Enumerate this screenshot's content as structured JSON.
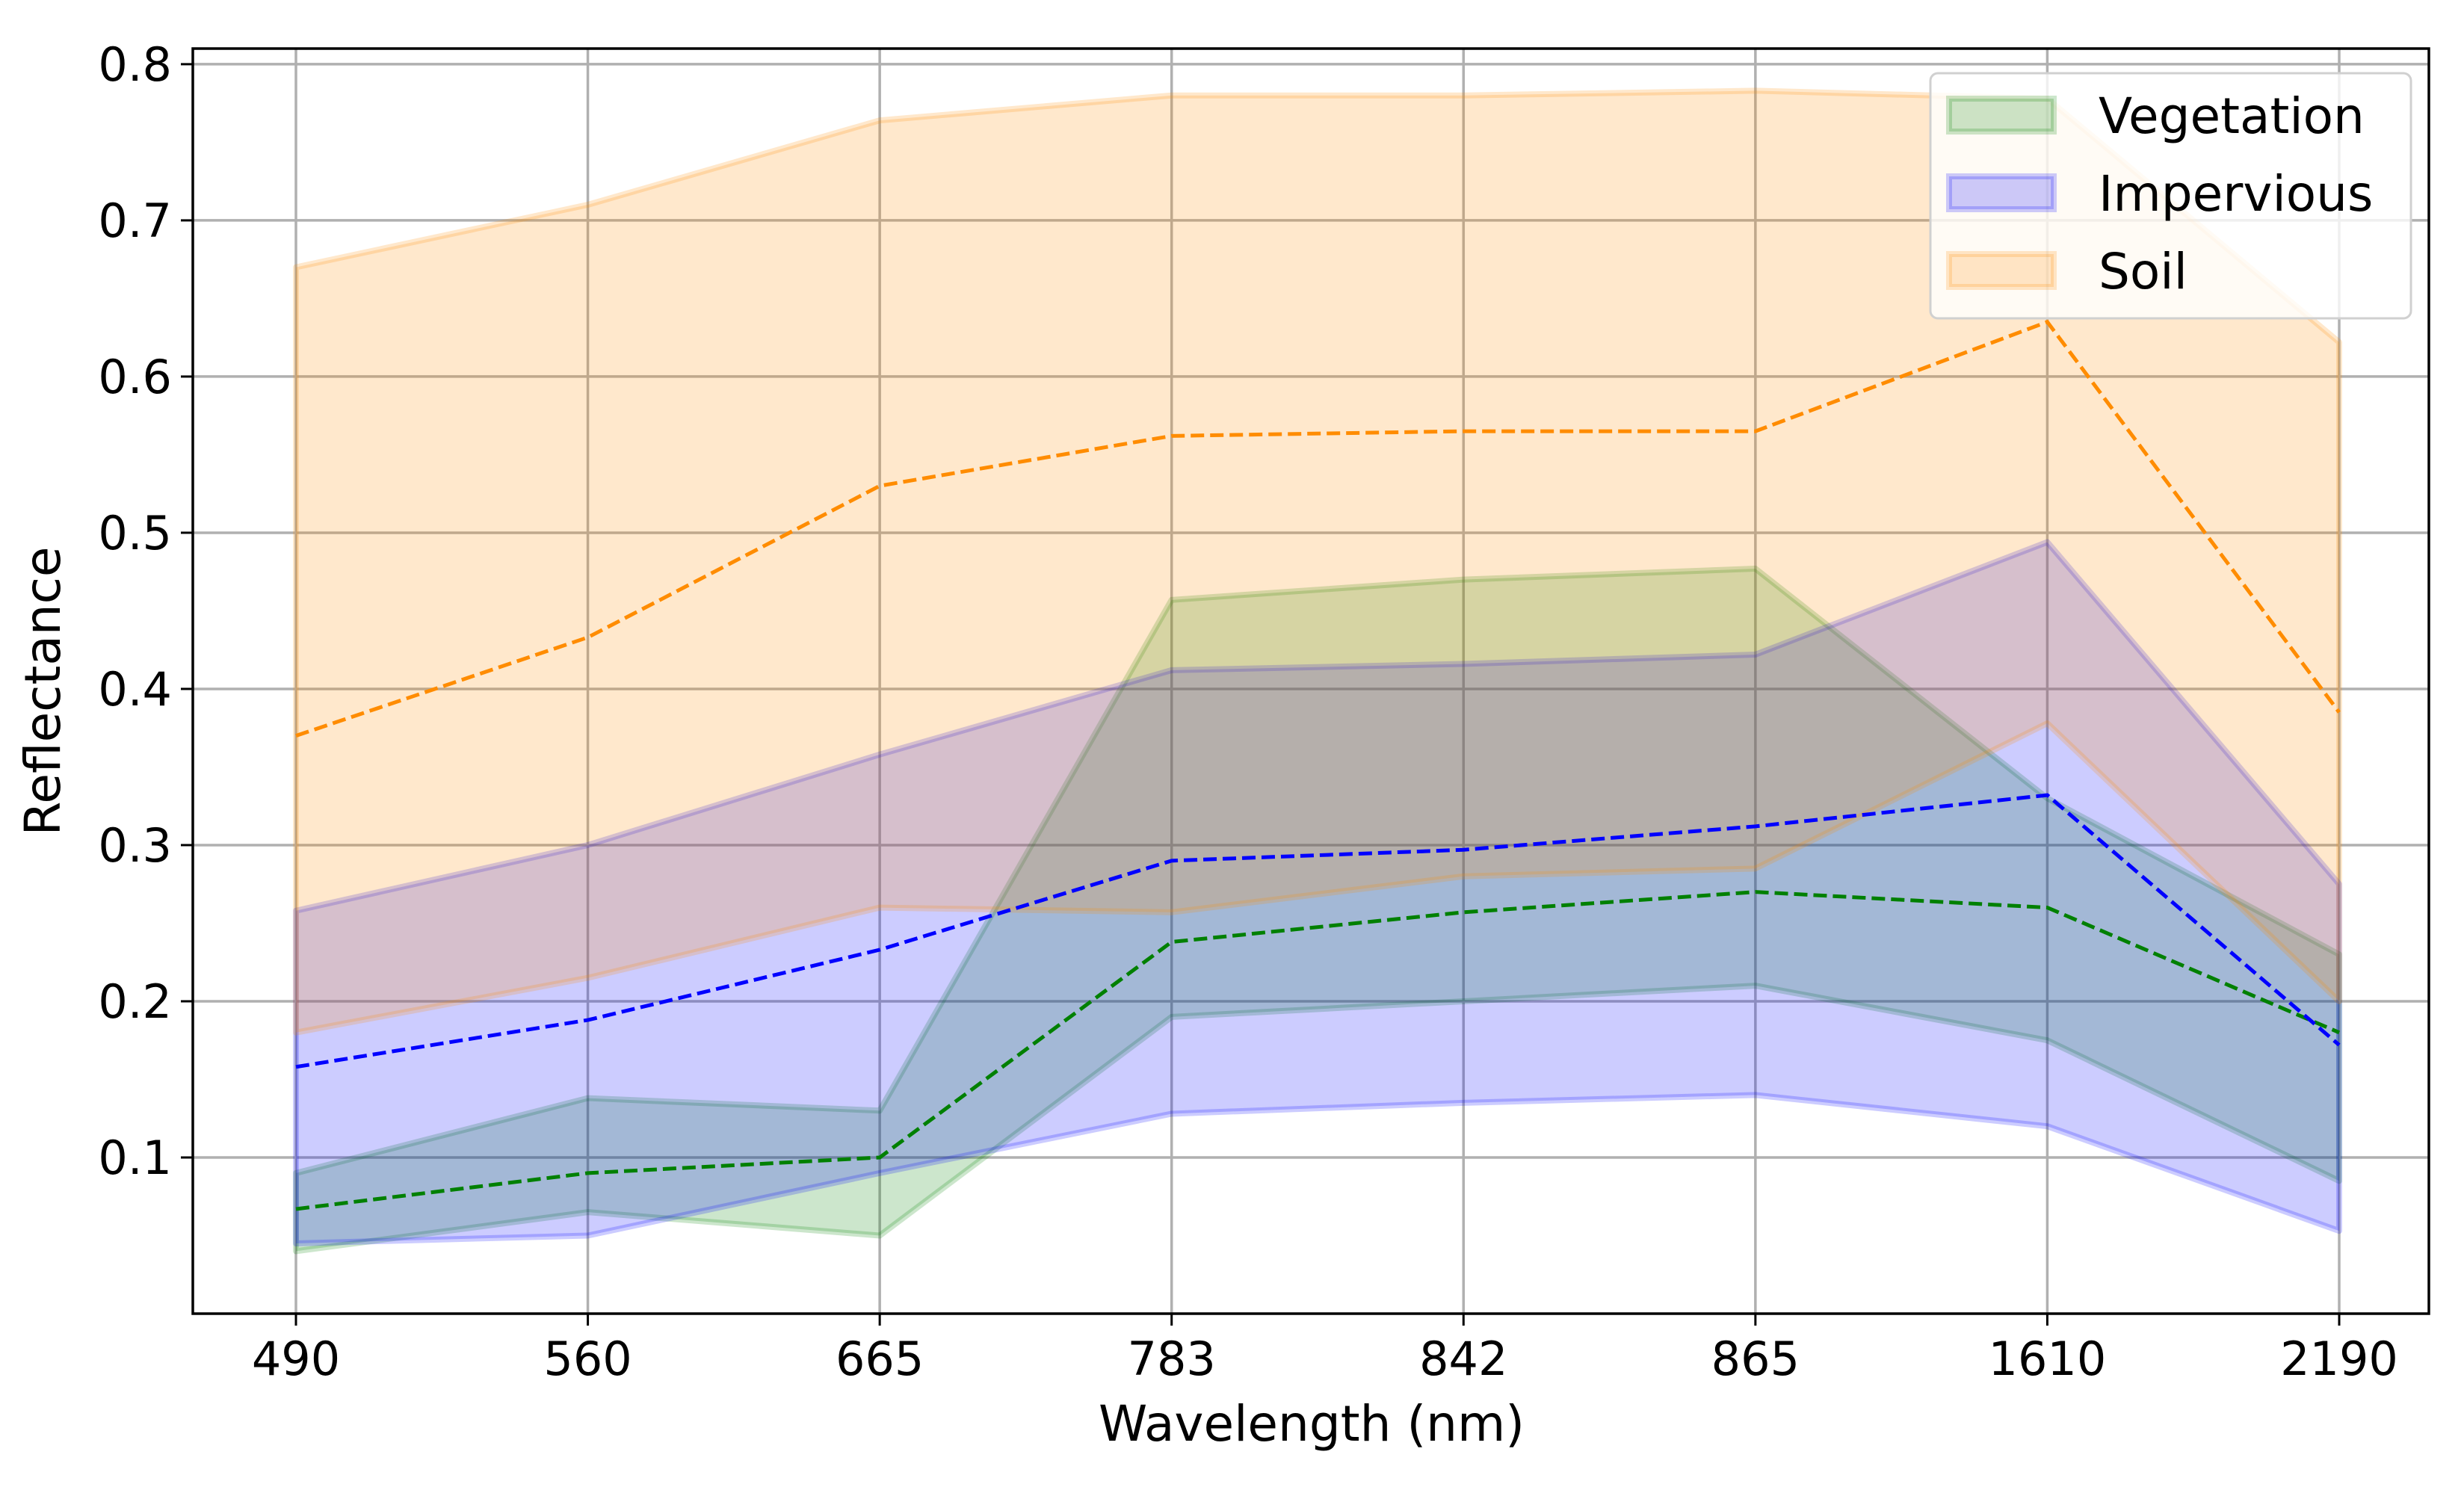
{
  "chart_data": {
    "type": "area",
    "xlabel": "Wavelength (nm)",
    "ylabel": "Reflectance",
    "categories": [
      "490",
      "560",
      "665",
      "783",
      "842",
      "865",
      "1610",
      "2190"
    ],
    "x_scale": "categorical",
    "ylim": [
      0.0,
      0.81
    ],
    "yticks": [
      "0.1",
      "0.2",
      "0.3",
      "0.4",
      "0.5",
      "0.6",
      "0.7",
      "0.8"
    ],
    "grid": true,
    "legend_position": "top-right",
    "series": [
      {
        "name": "Vegetation",
        "color": "#008000",
        "lower": [
          0.04,
          0.065,
          0.05,
          0.19,
          0.2,
          0.21,
          0.175,
          0.085
        ],
        "mean": [
          0.067,
          0.09,
          0.1,
          0.238,
          0.257,
          0.27,
          0.26,
          0.18
        ],
        "upper": [
          0.09,
          0.138,
          0.13,
          0.457,
          0.47,
          0.477,
          0.33,
          0.23
        ]
      },
      {
        "name": "Impervious",
        "color": "#0000ff",
        "lower": [
          0.045,
          0.05,
          0.09,
          0.128,
          0.135,
          0.14,
          0.12,
          0.053
        ],
        "mean": [
          0.158,
          0.188,
          0.233,
          0.29,
          0.297,
          0.312,
          0.332,
          0.172
        ],
        "upper": [
          0.258,
          0.3,
          0.358,
          0.412,
          0.416,
          0.422,
          0.494,
          0.275
        ]
      },
      {
        "name": "Soil",
        "color": "#ff8c00",
        "lower": [
          0.18,
          0.215,
          0.26,
          0.257,
          0.28,
          0.285,
          0.378,
          0.2
        ],
        "mean": [
          0.37,
          0.433,
          0.53,
          0.562,
          0.565,
          0.565,
          0.635,
          0.385
        ],
        "upper": [
          0.67,
          0.71,
          0.764,
          0.78,
          0.78,
          0.783,
          0.778,
          0.622
        ]
      }
    ]
  }
}
